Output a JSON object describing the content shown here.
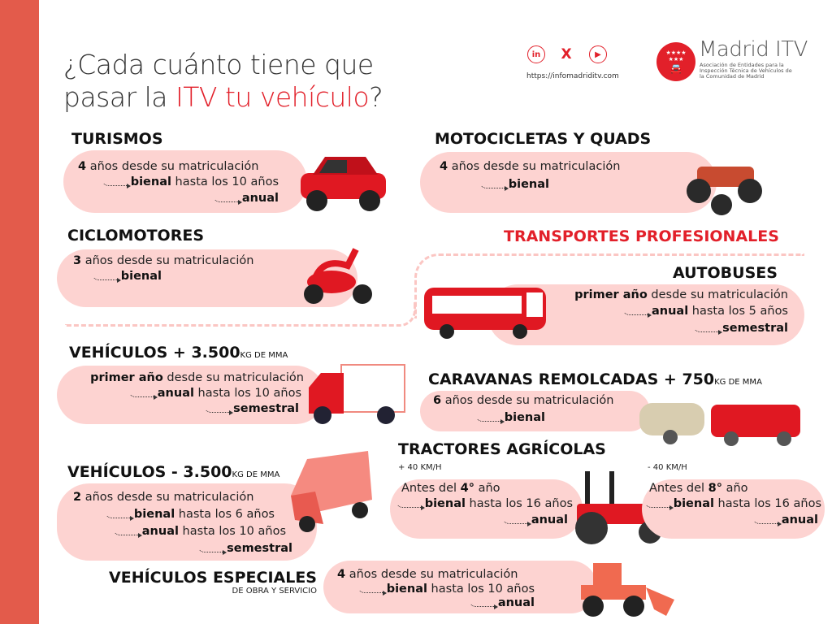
{
  "header": {
    "title_part1": "¿Cada cuánto tiene que",
    "title_part2": "pasar la ",
    "title_highlight": "ITV tu vehículo",
    "title_end": "?",
    "url": "https://infomadriditv.com",
    "social_icons": [
      "linkedin-icon",
      "x-icon",
      "youtube-icon"
    ],
    "logo": {
      "name": "Madrid ITV",
      "subtitle": "Asociación de Entidades para la Inspección Técnica de Vehículos de la Comunidad de Madrid"
    }
  },
  "colors": {
    "accent": "#e2202a",
    "sidebar": "#e35b4b",
    "pill": "#fdd3d1"
  },
  "transportes_profesionales": "TRANSPORTES PROFESIONALES",
  "sections": [
    {
      "id": "turismos",
      "title": "TURISMOS",
      "icon": "car-icon",
      "lines": [
        {
          "b": "4",
          "t": " años desde su matriculación"
        },
        {
          "arrow": true,
          "b": "bienal",
          "t": " hasta los 10 años"
        },
        {
          "arrow": true,
          "b": "anual",
          "t": ""
        }
      ]
    },
    {
      "id": "motos",
      "title": "MOTOCICLETAS Y QUADS",
      "icon": "quad-icon",
      "lines": [
        {
          "b": "4",
          "t": " años desde su matriculación"
        },
        {
          "arrow": true,
          "b": "bienal",
          "t": ""
        }
      ]
    },
    {
      "id": "ciclo",
      "title": "CICLOMOTORES",
      "icon": "scooter-icon",
      "lines": [
        {
          "b": "3",
          "t": " años desde su matriculación"
        },
        {
          "arrow": true,
          "b": "bienal",
          "t": ""
        }
      ]
    },
    {
      "id": "bus",
      "title": "AUTOBUSES",
      "icon": "bus-icon",
      "lines": [
        {
          "b": "primer año",
          "t": " desde su matriculación"
        },
        {
          "arrow": true,
          "b": "anual",
          "t": " hasta los 5 años"
        },
        {
          "arrow": true,
          "b": "semestral",
          "t": ""
        }
      ]
    },
    {
      "id": "pesados",
      "title": "VEHÍCULOS + 3.500",
      "suffix": "KG DE MMA",
      "icon": "truck-icon",
      "lines": [
        {
          "b": "primer año",
          "t": " desde su matriculación"
        },
        {
          "arrow": true,
          "b": "anual",
          "t": " hasta los 10 años"
        },
        {
          "arrow": true,
          "b": "semestral",
          "t": ""
        }
      ]
    },
    {
      "id": "caravanas",
      "title": "CARAVANAS REMOLCADAS + 750",
      "suffix": "KG DE MMA",
      "icon": "caravan-icon",
      "lines": [
        {
          "b": "6",
          "t": " años desde su matriculación"
        },
        {
          "arrow": true,
          "b": "bienal",
          "t": ""
        }
      ]
    },
    {
      "id": "trac1",
      "title": "TRACTORES AGRÍCOLAS",
      "note": "+ 40 KM/H",
      "icon": "tractor-icon",
      "lines": [
        {
          "pre": "Antes del ",
          "b": "4°",
          "t": " año"
        },
        {
          "arrow": true,
          "b": "bienal",
          "t": " hasta los 16 años"
        },
        {
          "arrow": true,
          "b": "anual",
          "t": ""
        }
      ]
    },
    {
      "id": "trac2",
      "note": "- 40 KM/H",
      "lines": [
        {
          "pre": "Antes del ",
          "b": "8°",
          "t": " año"
        },
        {
          "arrow": true,
          "b": "bienal",
          "t": " hasta los 16 años"
        },
        {
          "arrow": true,
          "b": "anual",
          "t": ""
        }
      ]
    },
    {
      "id": "ligeros",
      "title": "VEHÍCULOS - 3.500",
      "suffix": "KG DE MMA",
      "icon": "van-icon",
      "lines": [
        {
          "b": "2",
          "t": " años desde su matriculación"
        },
        {
          "arrow": true,
          "b": "bienal",
          "t": " hasta los 6 años"
        },
        {
          "arrow": true,
          "b": "anual",
          "t": " hasta los 10 años"
        },
        {
          "arrow": true,
          "b": "semestral",
          "t": ""
        }
      ]
    },
    {
      "id": "especiales",
      "title": "VEHÍCULOS ESPECIALES",
      "note": "DE OBRA Y SERVICIO",
      "icon": "loader-icon",
      "lines": [
        {
          "b": "4",
          "t": " años desde su matriculación"
        },
        {
          "arrow": true,
          "b": "bienal",
          "t": " hasta los 10 años"
        },
        {
          "arrow": true,
          "b": "anual",
          "t": ""
        }
      ]
    }
  ]
}
